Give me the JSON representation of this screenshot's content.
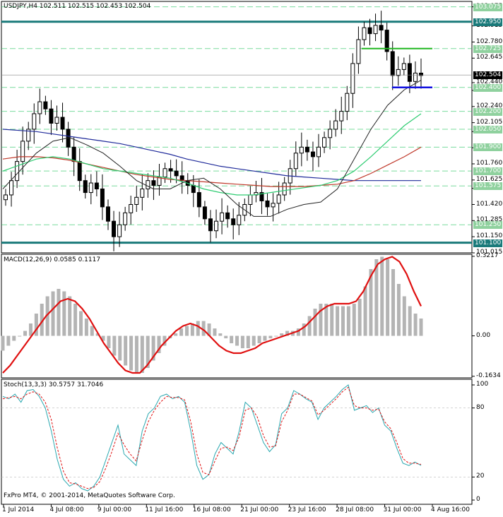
{
  "chart_data": [
    {
      "type": "candlestick",
      "title": "USDJPY,H4",
      "ohlc_header": "102.511 102.515 102.453 102.504",
      "ylim": [
        101.015,
        103.12
      ],
      "y_ticks": [
        "101.015",
        "101.150",
        "101.285",
        "101.420",
        "101.555",
        "101.625",
        "101.760",
        "101.895",
        "102.030",
        "102.105",
        "102.240",
        "102.375",
        "102.440",
        "102.645",
        "102.780",
        "102.915",
        "103.075"
      ],
      "levels": [
        {
          "label": "103.075",
          "value": 103.075,
          "style": "grid",
          "color": "#22c55e"
        },
        {
          "label": "102.950",
          "value": 102.95,
          "style": "major",
          "color": "#1a7a7a"
        },
        {
          "label": "102.725",
          "value": 102.725,
          "style": "dashed",
          "color": "#22c55e"
        },
        {
          "label": "102.400",
          "value": 102.4,
          "style": "dashed",
          "color": "#22c55e"
        },
        {
          "label": "102.200",
          "value": 102.2,
          "style": "dashed",
          "color": "#22c55e"
        },
        {
          "label": "102.050",
          "value": 102.05,
          "style": "dashed",
          "color": "#22c55e"
        },
        {
          "label": "101.900",
          "value": 101.9,
          "style": "dashed",
          "color": "#22c55e"
        },
        {
          "label": "101.700",
          "value": 101.7,
          "style": "dashed",
          "color": "#22c55e"
        },
        {
          "label": "101.575",
          "value": 101.575,
          "style": "dashed",
          "color": "#22c55e"
        },
        {
          "label": "101.250",
          "value": 101.25,
          "style": "dashed",
          "color": "#22c55e"
        },
        {
          "label": "101.100",
          "value": 101.1,
          "style": "major",
          "color": "#1a7a7a"
        }
      ],
      "current_price": "102.504",
      "closes": [
        101.5,
        101.62,
        101.78,
        101.95,
        102.05,
        102.18,
        102.28,
        102.22,
        102.1,
        102.15,
        102.05,
        101.9,
        101.78,
        101.62,
        101.52,
        101.6,
        101.55,
        101.4,
        101.28,
        101.15,
        101.25,
        101.35,
        101.42,
        101.48,
        101.55,
        101.62,
        101.58,
        101.65,
        101.72,
        101.7,
        101.66,
        101.62,
        101.58,
        101.52,
        101.4,
        101.3,
        101.2,
        101.28,
        101.35,
        101.3,
        101.25,
        101.33,
        101.42,
        101.5,
        101.52,
        101.45,
        101.4,
        101.43,
        101.5,
        101.6,
        101.72,
        101.85,
        101.9,
        101.86,
        101.82,
        101.9,
        101.98,
        102.05,
        102.12,
        102.2,
        102.35,
        102.6,
        102.8,
        102.9,
        102.85,
        102.92,
        102.88,
        102.7,
        102.5,
        102.55,
        102.6,
        102.45,
        102.52,
        102.5
      ],
      "ma_blue": [
        102.05,
        102.04,
        102.03,
        102.01,
        101.99,
        101.97,
        101.95,
        101.93,
        101.9,
        101.87,
        101.84,
        101.8,
        101.77,
        101.74,
        101.72,
        101.7,
        101.68,
        101.66,
        101.65,
        101.64,
        101.63,
        101.62,
        101.62,
        101.62,
        101.62,
        101.62
      ],
      "ma_red": [
        101.8,
        101.82,
        101.82,
        101.81,
        101.79,
        101.76,
        101.73,
        101.7,
        101.67,
        101.65,
        101.63,
        101.62,
        101.61,
        101.6,
        101.59,
        101.58,
        101.57,
        101.57,
        101.57,
        101.58,
        101.59,
        101.62,
        101.68,
        101.75,
        101.82,
        101.9
      ],
      "ma_green": [
        101.7,
        101.75,
        101.8,
        101.82,
        101.8,
        101.76,
        101.72,
        101.7,
        101.68,
        101.66,
        101.64,
        101.6,
        101.55,
        101.52,
        101.5,
        101.5,
        101.52,
        101.54,
        101.56,
        101.58,
        101.62,
        101.7,
        101.82,
        101.95,
        102.08,
        102.18
      ],
      "ma_black": [
        101.55,
        101.7,
        101.85,
        101.95,
        101.98,
        101.92,
        101.85,
        101.74,
        101.62,
        101.55,
        101.55,
        101.62,
        101.64,
        101.55,
        101.42,
        101.32,
        101.32,
        101.38,
        101.42,
        101.44,
        101.55,
        101.8,
        102.05,
        102.25,
        102.38,
        102.46
      ]
    },
    {
      "type": "bar",
      "title": "MACD(12,26,9) 0.0585 0.1117",
      "ylim": [
        -0.17,
        0.33
      ],
      "y_ticks": [
        "0.3217",
        "0.00",
        "-0.1634"
      ],
      "histogram": [
        -0.06,
        -0.04,
        -0.02,
        0.0,
        0.02,
        0.05,
        0.09,
        0.13,
        0.16,
        0.18,
        0.19,
        0.18,
        0.16,
        0.13,
        0.1,
        0.07,
        0.04,
        0.01,
        -0.02,
        -0.05,
        -0.08,
        -0.1,
        -0.12,
        -0.14,
        -0.15,
        -0.15,
        -0.13,
        -0.1,
        -0.07,
        -0.04,
        -0.01,
        0.01,
        0.03,
        0.04,
        0.05,
        0.06,
        0.06,
        0.05,
        0.03,
        0.01,
        -0.01,
        -0.03,
        -0.04,
        -0.05,
        -0.05,
        -0.04,
        -0.03,
        -0.02,
        -0.01,
        0.0,
        0.01,
        0.02,
        0.02,
        0.03,
        0.05,
        0.08,
        0.11,
        0.13,
        0.13,
        0.13,
        0.12,
        0.12,
        0.12,
        0.13,
        0.15,
        0.2,
        0.27,
        0.31,
        0.32,
        0.31,
        0.27,
        0.21,
        0.16,
        0.12,
        0.09,
        0.07
      ],
      "signal": [
        -0.15,
        -0.12,
        -0.08,
        -0.04,
        0.0,
        0.04,
        0.08,
        0.11,
        0.14,
        0.15,
        0.14,
        0.11,
        0.07,
        0.02,
        -0.03,
        -0.07,
        -0.11,
        -0.14,
        -0.15,
        -0.15,
        -0.12,
        -0.08,
        -0.04,
        -0.01,
        0.02,
        0.04,
        0.05,
        0.04,
        0.02,
        -0.01,
        -0.04,
        -0.06,
        -0.07,
        -0.07,
        -0.06,
        -0.05,
        -0.03,
        -0.02,
        -0.01,
        0.0,
        0.01,
        0.02,
        0.04,
        0.07,
        0.1,
        0.12,
        0.13,
        0.13,
        0.13,
        0.14,
        0.18,
        0.24,
        0.29,
        0.31,
        0.32,
        0.3,
        0.25,
        0.18,
        0.12
      ]
    },
    {
      "type": "line",
      "title": "Stoch(13,3,3) 30.5757 31.7046",
      "ylim": [
        0,
        100
      ],
      "y_ticks": [
        "100",
        "80",
        "20",
        "0"
      ],
      "k": [
        90,
        88,
        92,
        85,
        95,
        96,
        90,
        80,
        60,
        35,
        18,
        12,
        15,
        10,
        8,
        12,
        20,
        35,
        50,
        65,
        40,
        35,
        30,
        60,
        75,
        80,
        90,
        92,
        88,
        90,
        85,
        60,
        30,
        18,
        22,
        40,
        50,
        45,
        40,
        60,
        85,
        80,
        65,
        50,
        42,
        48,
        75,
        80,
        95,
        92,
        88,
        85,
        70,
        80,
        85,
        90,
        96,
        100,
        78,
        80,
        82,
        76,
        80,
        65,
        60,
        45,
        32,
        30,
        33,
        30
      ],
      "d": [
        88,
        89,
        90,
        88,
        92,
        94,
        92,
        85,
        70,
        45,
        25,
        15,
        14,
        12,
        10,
        11,
        16,
        28,
        42,
        58,
        48,
        40,
        34,
        52,
        68,
        78,
        85,
        90,
        89,
        89,
        87,
        68,
        40,
        24,
        22,
        34,
        45,
        46,
        43,
        55,
        78,
        80,
        72,
        56,
        46,
        47,
        68,
        78,
        92,
        92,
        89,
        86,
        74,
        78,
        83,
        88,
        94,
        98,
        82,
        80,
        80,
        78,
        79,
        68,
        62,
        50,
        36,
        32,
        32,
        31
      ]
    }
  ],
  "x_labels": [
    "1 Jul 2014",
    "4 Jul 08:00",
    "9 Jul 00:00",
    "11 Jul 16:00",
    "16 Jul 08:00",
    "21 Jul 00:00",
    "23 Jul 16:00",
    "28 Jul 08:00",
    "31 Jul 00:00",
    "4 Aug 16:00"
  ],
  "footer_text": "FxPro MT4, © 2001-2014, MetaQuotes Software Corp."
}
